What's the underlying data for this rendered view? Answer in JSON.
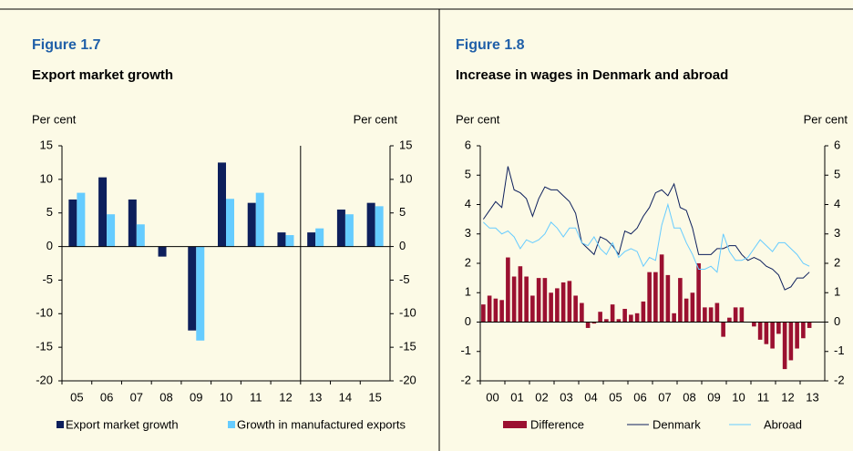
{
  "chart_data": [
    {
      "type": "bar",
      "figure": "Figure 1.7",
      "title": "Export market growth",
      "ylabel": "Per cent",
      "y2label": "Per cent",
      "categories": [
        "05",
        "06",
        "07",
        "08",
        "09",
        "10",
        "11",
        "12",
        "13",
        "14",
        "15"
      ],
      "series": [
        {
          "name": "Export market growth",
          "color": "#0d1f5c",
          "values": [
            7,
            10.3,
            7,
            -1.5,
            -12.5,
            12.5,
            6.5,
            2.1,
            2.1,
            5.5,
            6.5
          ]
        },
        {
          "name": "Growth in manufactured exports",
          "color": "#66ccff",
          "values": [
            8,
            4.8,
            3.3,
            null,
            -14,
            7.1,
            8,
            1.7,
            2.7,
            4.8,
            6
          ]
        }
      ],
      "ylim": [
        -20,
        15
      ],
      "yticks": [
        -20,
        -15,
        -10,
        -5,
        0,
        5,
        10,
        15
      ]
    },
    {
      "type": "combo",
      "figure": "Figure 1.8",
      "title": "Increase in wages in Denmark and abroad",
      "ylabel": "Per cent",
      "y2label": "Per cent",
      "categories": [
        "00",
        null,
        null,
        null,
        "01",
        null,
        null,
        null,
        "02",
        null,
        null,
        null,
        "03",
        null,
        null,
        null,
        "04",
        null,
        null,
        null,
        "05",
        null,
        null,
        null,
        "06",
        null,
        null,
        null,
        "07",
        null,
        null,
        null,
        "08",
        null,
        null,
        null,
        "09",
        null,
        null,
        null,
        "10",
        null,
        null,
        null,
        "11",
        null,
        null,
        null,
        "12",
        null,
        null,
        null,
        "13",
        null
      ],
      "series": [
        {
          "name": "Difference",
          "kind": "bar",
          "color": "#9b1030",
          "values": [
            0.6,
            0.9,
            0.8,
            0.75,
            2.2,
            1.55,
            1.9,
            1.55,
            0.9,
            1.5,
            1.5,
            1.0,
            1.15,
            1.35,
            1.4,
            0.9,
            0.65,
            -0.2,
            -0.05,
            0.35,
            0.1,
            0.6,
            0.1,
            0.45,
            0.25,
            0.3,
            0.7,
            1.7,
            1.7,
            2.3,
            1.6,
            0.3,
            1.5,
            0.8,
            1.0,
            2.0,
            0.5,
            0.5,
            0.65,
            -0.5,
            0.15,
            0.5,
            0.5,
            0,
            -0.15,
            -0.6,
            -0.75,
            -0.9,
            -0.4,
            -1.6,
            -1.3,
            -0.9,
            -0.55,
            -0.2
          ]
        },
        {
          "name": "Denmark",
          "kind": "line",
          "color": "#0d1f5c",
          "values": [
            3.5,
            3.8,
            4.1,
            3.9,
            5.3,
            4.5,
            4.4,
            4.2,
            3.6,
            4.2,
            4.6,
            4.5,
            4.5,
            4.3,
            4.1,
            3.7,
            2.7,
            2.5,
            2.3,
            2.9,
            2.8,
            2.6,
            2.3,
            3.1,
            3.0,
            3.2,
            3.6,
            3.9,
            4.4,
            4.5,
            4.3,
            4.7,
            3.9,
            3.8,
            3.2,
            2.3,
            2.3,
            2.3,
            2.5,
            2.5,
            2.6,
            2.6,
            2.3,
            2.1,
            2.2,
            2.1,
            1.9,
            1.8,
            1.6,
            1.1,
            1.2,
            1.5,
            1.5,
            1.7
          ]
        },
        {
          "name": "Abroad",
          "kind": "line",
          "color": "#66ccff",
          "values": [
            3.4,
            3.2,
            3.2,
            3.0,
            3.1,
            2.9,
            2.5,
            2.8,
            2.7,
            2.8,
            3.0,
            3.4,
            3.2,
            2.9,
            3.2,
            3.2,
            2.7,
            2.6,
            2.9,
            2.5,
            2.3,
            2.7,
            2.2,
            2.4,
            2.5,
            2.4,
            1.9,
            2.2,
            2.1,
            3.3,
            4.0,
            3.2,
            3.2,
            2.7,
            2.3,
            1.8,
            1.8,
            1.9,
            1.7,
            3.0,
            2.4,
            2.1,
            2.1,
            2.2,
            2.5,
            2.8,
            2.6,
            2.4,
            2.7,
            2.7,
            2.5,
            2.3,
            2.0,
            1.9
          ]
        }
      ],
      "ylim": [
        -2,
        6
      ],
      "yticks": [
        -2,
        -1,
        0,
        1,
        2,
        3,
        4,
        5,
        6
      ]
    }
  ]
}
